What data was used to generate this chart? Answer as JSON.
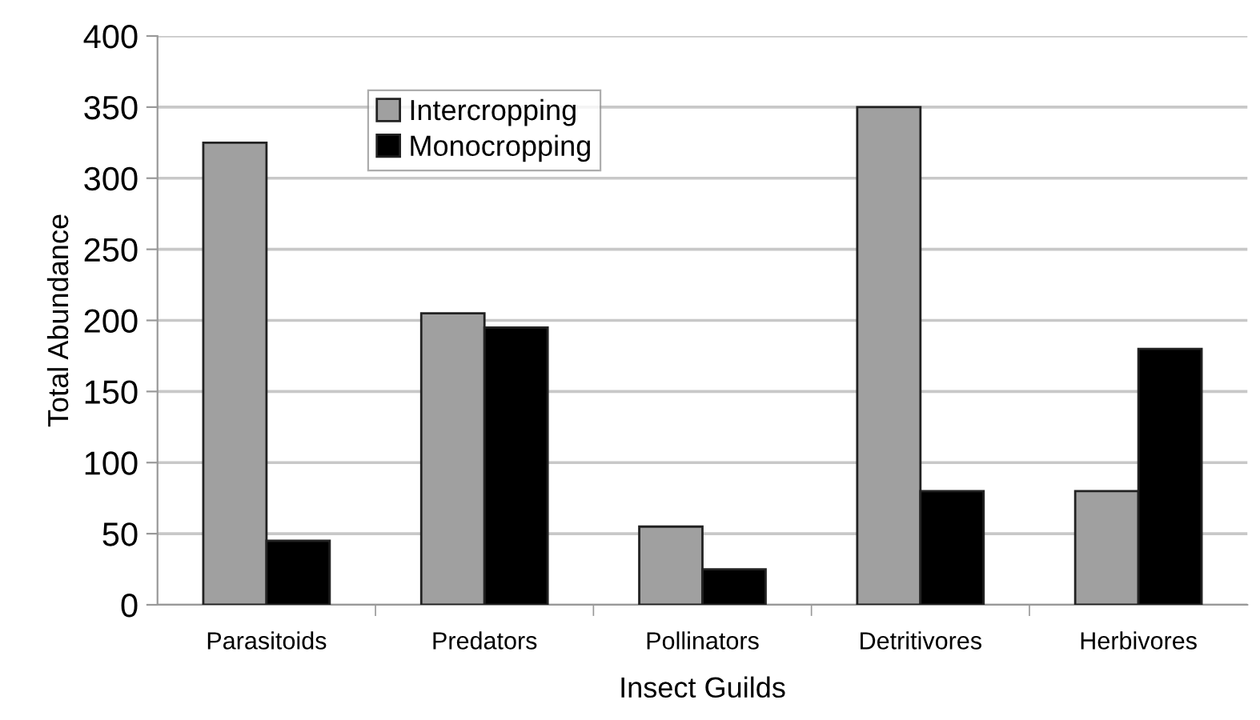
{
  "chart_data": {
    "type": "bar",
    "xlabel": "Insect Guilds",
    "ylabel": "Total Abundance",
    "categories": [
      "Parasitoids",
      "Predators",
      "Pollinators",
      "Detritivores",
      "Herbivores"
    ],
    "series": [
      {
        "name": "Intercropping",
        "color": "#a0a0a0",
        "values": [
          325,
          205,
          55,
          350,
          80
        ]
      },
      {
        "name": "Monocropping",
        "color": "#000000",
        "values": [
          45,
          195,
          25,
          80,
          180
        ]
      }
    ],
    "ylim": [
      0,
      400
    ],
    "yticks": [
      0,
      50,
      100,
      150,
      200,
      250,
      300,
      350,
      400
    ],
    "grid": "y",
    "legend": "top left"
  }
}
